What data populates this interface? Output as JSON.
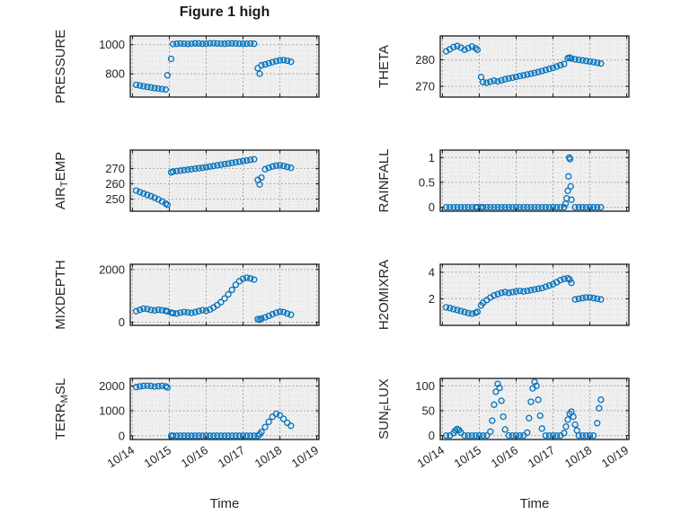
{
  "figure": {
    "title": "Figure 1 high",
    "marker_color": "#0072BD",
    "background": "#ffffff",
    "plot_background": "#efefef",
    "grid_color": "#9a9a9a",
    "minor_grid_color": "#d9d9d9",
    "axis_color": "#1a1a1a",
    "text_color": "#252525"
  },
  "x_axis": {
    "label": "Time",
    "lim": [
      -0.06,
      5.06
    ],
    "ticks": [
      0,
      1,
      2,
      3,
      4,
      5
    ],
    "labels": [
      "10/14",
      "10/15",
      "10/16",
      "10/17",
      "10/18",
      "10/19"
    ]
  },
  "chart_data": [
    {
      "name": "PRESSURE",
      "type": "scatter",
      "ylabel": "PRESSURE",
      "ylabel_parts": [
        {
          "t": "PRESSURE"
        }
      ],
      "yticks": [
        800,
        1000
      ],
      "ytick_labels": [
        "800",
        "1000"
      ],
      "ylim": [
        640,
        1060
      ],
      "x": [
        0.1,
        0.2,
        0.3,
        0.4,
        0.5,
        0.6,
        0.7,
        0.8,
        0.9,
        0.95,
        1.05,
        1.1,
        1.2,
        1.3,
        1.4,
        1.5,
        1.6,
        1.7,
        1.8,
        1.9,
        2.0,
        2.1,
        2.2,
        2.3,
        2.4,
        2.5,
        2.6,
        2.7,
        2.8,
        2.9,
        3.0,
        3.1,
        3.2,
        3.3,
        3.4,
        3.45,
        3.5,
        3.6,
        3.7,
        3.8,
        3.9,
        4.0,
        4.1,
        4.2,
        4.3
      ],
      "y": [
        724,
        719,
        714,
        710,
        706,
        702,
        698,
        695,
        692,
        790,
        902,
        1004,
        1006,
        1008,
        1007,
        1005,
        1007,
        1009,
        1008,
        1006,
        1007,
        1009,
        1010,
        1008,
        1007,
        1006,
        1008,
        1009,
        1008,
        1007,
        1006,
        1007,
        1008,
        1006,
        838,
        800,
        858,
        864,
        872,
        880,
        887,
        892,
        894,
        890,
        883
      ]
    },
    {
      "name": "THETA",
      "type": "scatter",
      "ylabel": "THETA",
      "ylabel_parts": [
        {
          "t": "THETA"
        }
      ],
      "yticks": [
        270,
        280
      ],
      "ytick_labels": [
        "270",
        "280"
      ],
      "ylim": [
        266,
        289
      ],
      "x": [
        0.1,
        0.2,
        0.3,
        0.4,
        0.5,
        0.6,
        0.7,
        0.8,
        0.9,
        0.95,
        1.05,
        1.1,
        1.2,
        1.3,
        1.4,
        1.5,
        1.6,
        1.7,
        1.8,
        1.9,
        2.0,
        2.1,
        2.2,
        2.3,
        2.4,
        2.5,
        2.6,
        2.7,
        2.8,
        2.9,
        3.0,
        3.1,
        3.2,
        3.3,
        3.4,
        3.45,
        3.5,
        3.6,
        3.7,
        3.8,
        3.9,
        4.0,
        4.1,
        4.2,
        4.3
      ],
      "y": [
        283.2,
        284.0,
        284.8,
        285.2,
        284.6,
        283.8,
        284.4,
        285.0,
        284.4,
        283.8,
        273.5,
        271.6,
        271.4,
        271.8,
        272.2,
        271.9,
        272.3,
        272.7,
        273.0,
        273.3,
        273.6,
        273.9,
        274.2,
        274.5,
        274.8,
        275.1,
        275.4,
        275.8,
        276.2,
        276.6,
        277.0,
        277.5,
        278.0,
        278.4,
        280.6,
        280.8,
        280.5,
        280.2,
        280.0,
        279.8,
        279.6,
        279.4,
        279.2,
        278.9,
        278.6
      ]
    },
    {
      "name": "AIR_TEMP",
      "type": "scatter",
      "ylabel": "AIR_TEMP",
      "ylabel_parts": [
        {
          "t": "AIR"
        },
        {
          "t": "T",
          "sub": true
        },
        {
          "t": "EMP"
        }
      ],
      "yticks": [
        250,
        260,
        270
      ],
      "ytick_labels": [
        "250",
        "260",
        "270"
      ],
      "ylim": [
        242,
        282
      ],
      "x": [
        0.1,
        0.2,
        0.3,
        0.4,
        0.5,
        0.6,
        0.7,
        0.8,
        0.9,
        0.95,
        1.05,
        1.1,
        1.2,
        1.3,
        1.4,
        1.5,
        1.6,
        1.7,
        1.8,
        1.9,
        2.0,
        2.1,
        2.2,
        2.3,
        2.4,
        2.5,
        2.6,
        2.7,
        2.8,
        2.9,
        3.0,
        3.1,
        3.2,
        3.3,
        3.4,
        3.45,
        3.5,
        3.6,
        3.7,
        3.8,
        3.9,
        4.0,
        4.1,
        4.2,
        4.3
      ],
      "y": [
        255.5,
        254.5,
        253.6,
        252.7,
        251.8,
        250.8,
        249.7,
        248.4,
        247.0,
        246.2,
        267.4,
        268.0,
        268.3,
        268.6,
        268.9,
        269.2,
        269.5,
        269.8,
        270.1,
        270.4,
        270.8,
        271.2,
        271.6,
        272.0,
        272.4,
        272.8,
        273.2,
        273.6,
        274.0,
        274.4,
        274.8,
        275.2,
        275.6,
        276.0,
        262.5,
        259.5,
        264.0,
        269.5,
        270.5,
        271.3,
        271.8,
        272.0,
        271.6,
        271.0,
        270.4
      ]
    },
    {
      "name": "RAINFALL",
      "type": "scatter",
      "ylabel": "RAINFALL",
      "ylabel_parts": [
        {
          "t": "RAINFALL"
        }
      ],
      "yticks": [
        0,
        0.5,
        1
      ],
      "ytick_labels": [
        "0",
        "0.5",
        "1"
      ],
      "ylim": [
        -0.08,
        1.15
      ],
      "x": [
        0.1,
        0.2,
        0.3,
        0.4,
        0.5,
        0.6,
        0.7,
        0.8,
        0.9,
        0.95,
        1.05,
        1.1,
        1.2,
        1.3,
        1.4,
        1.5,
        1.6,
        1.7,
        1.8,
        1.9,
        2.0,
        2.1,
        2.2,
        2.3,
        2.4,
        2.5,
        2.6,
        2.7,
        2.8,
        2.9,
        3.0,
        3.1,
        3.2,
        3.3,
        3.34,
        3.37,
        3.4,
        3.42,
        3.44,
        3.46,
        3.48,
        3.5,
        3.6,
        3.7,
        3.8,
        3.9,
        4.0,
        4.1,
        4.2,
        4.3
      ],
      "y": [
        0,
        0,
        0,
        0,
        0,
        0,
        0,
        0,
        0,
        0,
        0,
        0,
        0,
        0,
        0,
        0,
        0,
        0,
        0,
        0,
        0,
        0,
        0,
        0,
        0,
        0,
        0,
        0,
        0,
        0,
        0,
        0,
        0,
        0,
        0.07,
        0.18,
        0.33,
        0.62,
        1.0,
        0.97,
        0.42,
        0.15,
        0,
        0,
        0,
        0,
        0,
        0,
        0,
        0
      ]
    },
    {
      "name": "MIXDEPTH",
      "type": "scatter",
      "ylabel": "MIXDEPTH",
      "ylabel_parts": [
        {
          "t": "MIXDEPTH"
        }
      ],
      "yticks": [
        0,
        2000
      ],
      "ytick_labels": [
        "0",
        "2000"
      ],
      "ylim": [
        -120,
        2200
      ],
      "x": [
        0.1,
        0.2,
        0.3,
        0.4,
        0.5,
        0.6,
        0.7,
        0.8,
        0.9,
        0.95,
        1.05,
        1.1,
        1.2,
        1.3,
        1.4,
        1.5,
        1.6,
        1.7,
        1.8,
        1.9,
        2.0,
        2.1,
        2.2,
        2.3,
        2.4,
        2.5,
        2.6,
        2.7,
        2.8,
        2.9,
        3.0,
        3.1,
        3.2,
        3.3,
        3.4,
        3.45,
        3.5,
        3.6,
        3.7,
        3.8,
        3.9,
        4.0,
        4.1,
        4.2,
        4.3
      ],
      "y": [
        420,
        470,
        515,
        500,
        465,
        445,
        470,
        452,
        432,
        412,
        362,
        345,
        330,
        360,
        390,
        370,
        352,
        382,
        420,
        458,
        432,
        480,
        558,
        648,
        760,
        900,
        1058,
        1228,
        1420,
        1560,
        1648,
        1688,
        1660,
        1618,
        120,
        92,
        140,
        182,
        240,
        300,
        358,
        400,
        382,
        332,
        282
      ]
    },
    {
      "name": "H2OMIXRA",
      "type": "scatter",
      "ylabel": "H2OMIXRA",
      "ylabel_parts": [
        {
          "t": "H2OMIXRA"
        }
      ],
      "yticks": [
        2,
        4
      ],
      "ytick_labels": [
        "2",
        "4"
      ],
      "ylim": [
        0,
        4.6
      ],
      "x": [
        0.1,
        0.2,
        0.3,
        0.4,
        0.5,
        0.6,
        0.7,
        0.8,
        0.9,
        0.95,
        1.05,
        1.1,
        1.2,
        1.3,
        1.4,
        1.5,
        1.6,
        1.7,
        1.8,
        1.9,
        2.0,
        2.1,
        2.2,
        2.3,
        2.4,
        2.5,
        2.6,
        2.7,
        2.8,
        2.9,
        3.0,
        3.1,
        3.2,
        3.3,
        3.4,
        3.45,
        3.5,
        3.6,
        3.7,
        3.8,
        3.9,
        4.0,
        4.1,
        4.2,
        4.3
      ],
      "y": [
        1.35,
        1.3,
        1.22,
        1.15,
        1.08,
        1.0,
        0.92,
        0.88,
        0.95,
        1.02,
        1.5,
        1.7,
        1.9,
        2.1,
        2.25,
        2.35,
        2.45,
        2.5,
        2.45,
        2.5,
        2.55,
        2.6,
        2.55,
        2.6,
        2.65,
        2.7,
        2.75,
        2.8,
        2.9,
        3.0,
        3.1,
        3.25,
        3.4,
        3.5,
        3.55,
        3.45,
        3.2,
        1.95,
        2.0,
        2.05,
        2.1,
        2.1,
        2.05,
        2.0,
        1.95
      ]
    },
    {
      "name": "TERR_MSL",
      "type": "scatter",
      "ylabel": "TERR_MSL",
      "ylabel_parts": [
        {
          "t": "TERR"
        },
        {
          "t": "M",
          "sub": true
        },
        {
          "t": "SL"
        }
      ],
      "yticks": [
        0,
        1000,
        2000
      ],
      "ytick_labels": [
        "0",
        "1000",
        "2000"
      ],
      "ylim": [
        -150,
        2300
      ],
      "x": [
        0.1,
        0.2,
        0.3,
        0.4,
        0.5,
        0.6,
        0.7,
        0.8,
        0.9,
        0.95,
        1.05,
        1.1,
        1.2,
        1.3,
        1.4,
        1.5,
        1.6,
        1.7,
        1.8,
        1.9,
        2.0,
        2.1,
        2.2,
        2.3,
        2.4,
        2.5,
        2.6,
        2.7,
        2.8,
        2.9,
        3.0,
        3.1,
        3.2,
        3.3,
        3.4,
        3.45,
        3.5,
        3.6,
        3.7,
        3.8,
        3.9,
        4.0,
        4.1,
        4.2,
        4.3
      ],
      "y": [
        1950,
        1978,
        1998,
        2008,
        1992,
        1972,
        1986,
        1996,
        1980,
        1935,
        0,
        0,
        0,
        0,
        0,
        0,
        0,
        0,
        0,
        0,
        0,
        0,
        0,
        0,
        0,
        0,
        0,
        0,
        0,
        0,
        0,
        0,
        0,
        0,
        0,
        60,
        150,
        350,
        560,
        760,
        880,
        820,
        680,
        520,
        400
      ]
    },
    {
      "name": "SUN_FLUX",
      "type": "scatter",
      "ylabel": "SUN_FLUX",
      "ylabel_parts": [
        {
          "t": "SUN"
        },
        {
          "t": "F",
          "sub": true
        },
        {
          "t": "LUX"
        }
      ],
      "yticks": [
        0,
        50,
        100
      ],
      "ytick_labels": [
        "0",
        "50",
        "100"
      ],
      "ylim": [
        -8,
        115
      ],
      "x": [
        0.1,
        0.2,
        0.3,
        0.35,
        0.4,
        0.45,
        0.5,
        0.6,
        0.7,
        0.8,
        0.9,
        1.0,
        1.1,
        1.2,
        1.3,
        1.35,
        1.4,
        1.45,
        1.5,
        1.55,
        1.6,
        1.65,
        1.7,
        1.8,
        1.9,
        2.0,
        2.1,
        2.2,
        2.3,
        2.35,
        2.4,
        2.45,
        2.5,
        2.55,
        2.6,
        2.65,
        2.7,
        2.8,
        2.9,
        3.0,
        3.1,
        3.2,
        3.3,
        3.35,
        3.4,
        3.45,
        3.5,
        3.55,
        3.6,
        3.65,
        3.7,
        3.8,
        3.9,
        4.0,
        4.1,
        4.2,
        4.25,
        4.3
      ],
      "y": [
        0,
        0,
        5,
        10,
        13,
        11,
        6,
        0,
        0,
        0,
        0,
        0,
        0,
        0,
        8,
        30,
        62,
        88,
        104,
        96,
        70,
        38,
        12,
        0,
        0,
        0,
        0,
        0,
        6,
        35,
        68,
        95,
        108,
        100,
        72,
        40,
        14,
        0,
        0,
        0,
        0,
        0,
        5,
        18,
        32,
        44,
        48,
        38,
        22,
        10,
        0,
        0,
        0,
        0,
        0,
        25,
        55,
        72
      ]
    }
  ]
}
